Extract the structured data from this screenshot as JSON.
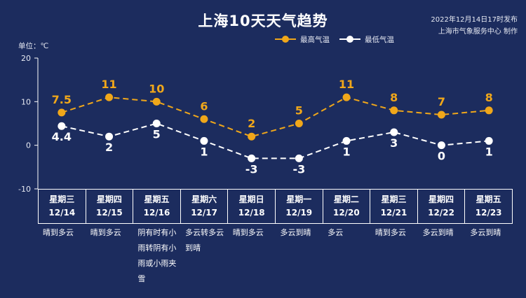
{
  "header": {
    "title": "上海10天天气趋势",
    "publish_line1": "2022年12月14日17时发布",
    "publish_line2": "上海市气象服务中心 制作"
  },
  "colors": {
    "background": "#1c2c5e",
    "high": "#f0a71a",
    "low": "#ffffff"
  },
  "chart_data": {
    "type": "line",
    "unit_label": "单位：℃",
    "ylim": [
      -10,
      20
    ],
    "yticks": [
      20,
      10,
      0,
      -10
    ],
    "x": [
      "星期三 12/14",
      "星期四 12/15",
      "星期五 12/16",
      "星期六 12/17",
      "星期日 12/18",
      "星期一 12/19",
      "星期二 12/20",
      "星期三 12/21",
      "星期四 12/22",
      "星期五 12/23"
    ],
    "series": [
      {
        "name": "最高气温",
        "values": [
          7.5,
          11,
          10,
          6,
          2,
          5,
          11,
          8,
          7,
          8
        ],
        "labels": [
          "7.5",
          "11",
          "10",
          "6",
          "2",
          "5",
          "11",
          "8",
          "7",
          "8"
        ]
      },
      {
        "name": "最低气温",
        "values": [
          4.4,
          2,
          5,
          1,
          -3,
          -3,
          1,
          3,
          0,
          1
        ],
        "labels": [
          "4.4",
          "2",
          "5",
          "1",
          "-3",
          "-3",
          "1",
          "3",
          "0",
          "1"
        ]
      }
    ],
    "legend": "top-center",
    "grid": false
  },
  "days": [
    {
      "weekday": "星期三",
      "date": "12/14",
      "condition": "晴到多云"
    },
    {
      "weekday": "星期四",
      "date": "12/15",
      "condition": "晴到多云"
    },
    {
      "weekday": "星期五",
      "date": "12/16",
      "condition": "阴有时有小雨转阴有小雨或小雨夹雪"
    },
    {
      "weekday": "星期六",
      "date": "12/17",
      "condition": "多云转多云到晴"
    },
    {
      "weekday": "星期日",
      "date": "12/18",
      "condition": "晴到多云"
    },
    {
      "weekday": "星期一",
      "date": "12/19",
      "condition": "多云到晴"
    },
    {
      "weekday": "星期二",
      "date": "12/20",
      "condition": "多云"
    },
    {
      "weekday": "星期三",
      "date": "12/21",
      "condition": "晴到多云"
    },
    {
      "weekday": "星期四",
      "date": "12/22",
      "condition": "多云到晴"
    },
    {
      "weekday": "星期五",
      "date": "12/23",
      "condition": "多云到晴"
    }
  ]
}
